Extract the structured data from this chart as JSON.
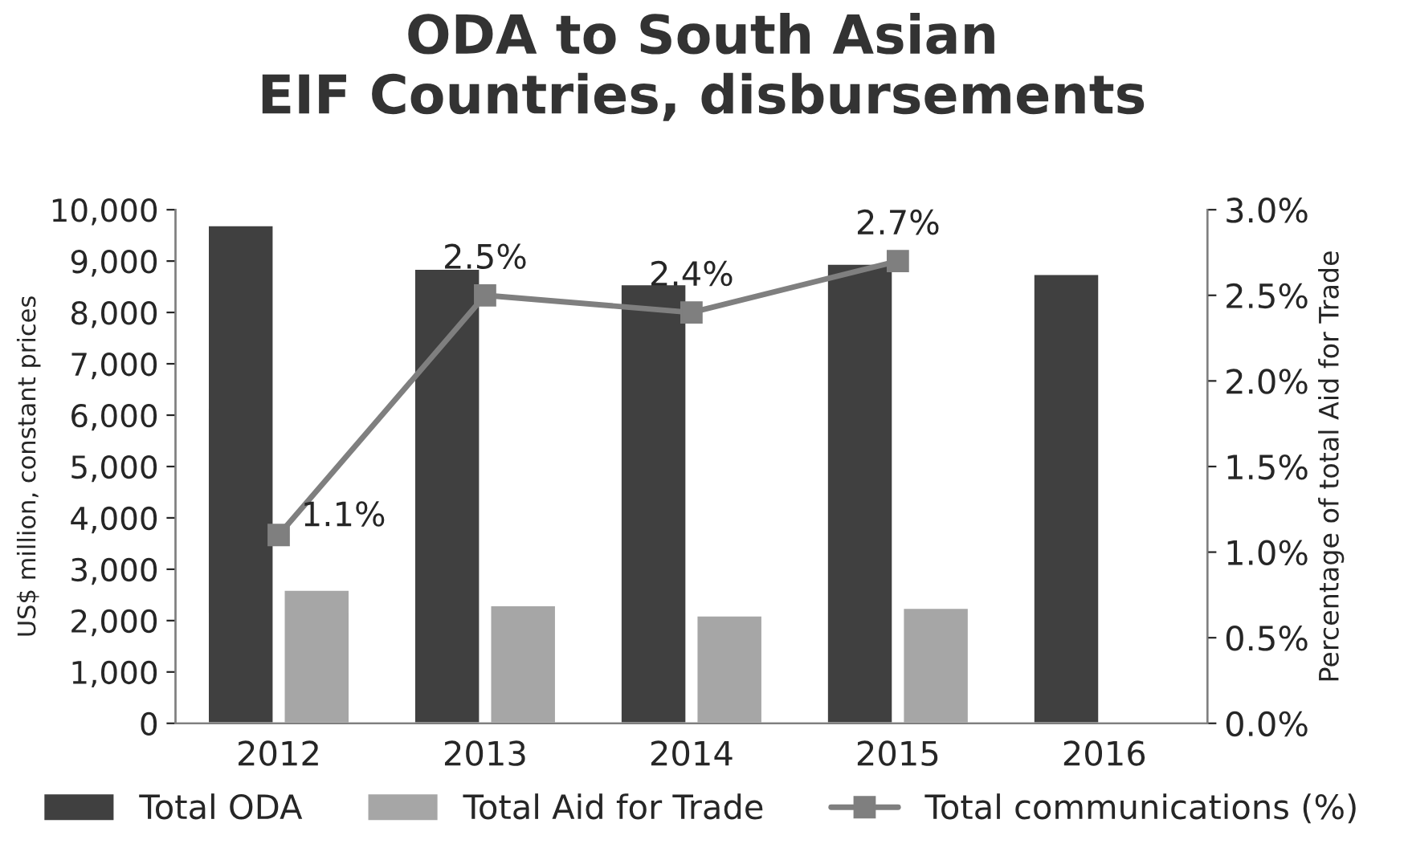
{
  "chart_data": {
    "type": "bar",
    "title": "ODA to South Asian\nEIF Countries, disbursements",
    "ylabel": "US$ million, constant prices",
    "y2label": "Percentage of total Aid for Trade",
    "categories": [
      "2012",
      "2013",
      "2014",
      "2015",
      "2016"
    ],
    "series": [
      {
        "name": "Total ODA",
        "color": "#404040",
        "values": [
          9700,
          8850,
          8550,
          8950,
          8750
        ]
      },
      {
        "name": "Total Aid for Trade",
        "color": "#a6a6a6",
        "values": [
          2600,
          2300,
          2100,
          2250,
          null
        ]
      },
      {
        "name": "Total communications (%)",
        "type": "line",
        "axis": "y2",
        "color": "#7f7f7f",
        "marker": "square",
        "values": [
          1.1,
          2.5,
          2.4,
          2.7,
          null
        ],
        "value_labels": [
          "1.1%",
          "2.5%",
          "2.4%",
          "2.7%",
          null
        ]
      }
    ],
    "ylim": [
      0,
      10000
    ],
    "yticks": [
      0,
      {
        "value": 1000,
        "label": "1,000"
      },
      {
        "value": 2000,
        "label": "2,000"
      },
      {
        "value": 3000,
        "label": "3,000"
      },
      {
        "value": 4000,
        "label": "4,000"
      },
      {
        "value": 5000,
        "label": "5,000"
      },
      {
        "value": 6000,
        "label": "6,000"
      },
      {
        "value": 7000,
        "label": "7,000"
      },
      {
        "value": 8000,
        "label": "8,000"
      },
      {
        "value": 9000,
        "label": "9,000"
      },
      {
        "value": 10000,
        "label": "10,000"
      }
    ],
    "y2lim": [
      0,
      3
    ],
    "y2ticks": [
      {
        "value": 0,
        "label": "0.0%"
      },
      {
        "value": 0.5,
        "label": "0.5%"
      },
      {
        "value": 1,
        "label": "1.0%"
      },
      {
        "value": 1.5,
        "label": "1.5%"
      },
      {
        "value": 2,
        "label": "2.0%"
      },
      {
        "value": 2.5,
        "label": "2.5%"
      },
      {
        "value": 3,
        "label": "3.0%"
      }
    ],
    "legend": "bottom"
  }
}
